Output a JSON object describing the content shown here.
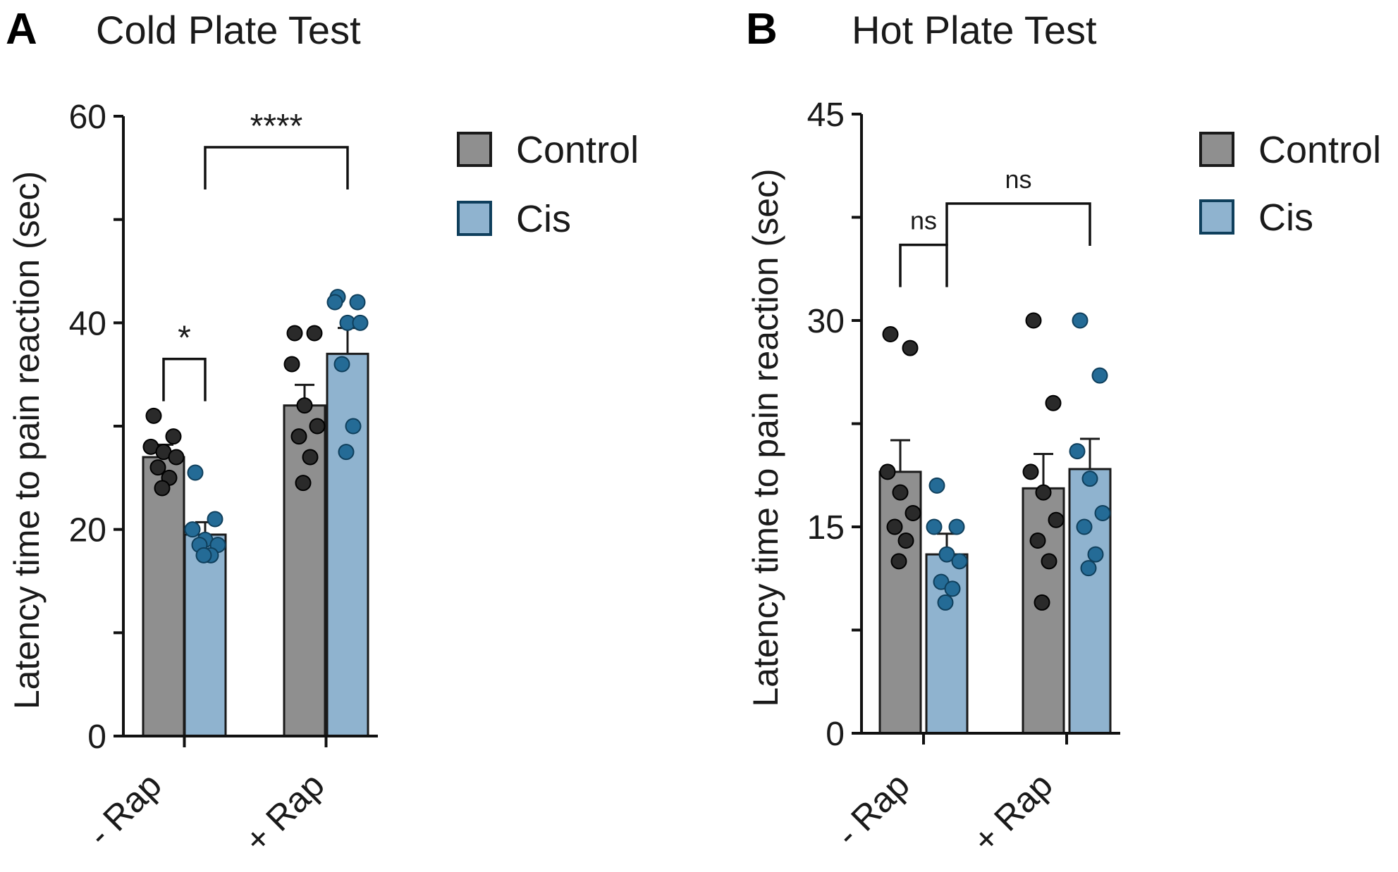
{
  "chart_data": [
    {
      "type": "bar",
      "panel_label": "A",
      "title": "Cold Plate Test",
      "ylabel": "Latency time to pain reaction (sec)",
      "ylim": [
        0,
        60
      ],
      "yticks": [
        "0",
        "20",
        "40",
        "60"
      ],
      "categories": [
        "- Rap",
        "+ Rap"
      ],
      "series": [
        {
          "name": "Control",
          "color": "#8f8f8f",
          "dot_color": "#2a2a2a",
          "values": [
            27,
            32
          ],
          "errors": [
            1.2,
            2
          ],
          "points": [
            [
              31,
              29,
              28,
              27.5,
              27,
              26,
              25,
              24
            ],
            [
              39,
              39,
              36,
              32,
              30,
              29,
              27,
              24.5
            ]
          ]
        },
        {
          "name": "Cis",
          "color": "#8fb3cf",
          "dot_color": "#246b96",
          "values": [
            19.5,
            37
          ],
          "errors": [
            1.2,
            2.5
          ],
          "points": [
            [
              25.5,
              21,
              20,
              19,
              18.5,
              18.5,
              17.5,
              17.5
            ],
            [
              42.5,
              42,
              42,
              40,
              40,
              36,
              30,
              27.5
            ]
          ]
        }
      ],
      "annotations": [
        {
          "label": "*",
          "from": [
            0,
            0
          ],
          "to": [
            0,
            1
          ],
          "level": 36.5
        },
        {
          "label": "****",
          "from": [
            0,
            1
          ],
          "to": [
            1,
            1
          ],
          "level": 57
        }
      ],
      "legend": [
        "Control",
        "Cis"
      ]
    },
    {
      "type": "bar",
      "panel_label": "B",
      "title": "Hot Plate Test",
      "ylabel": "Latency time to pain reaction (sec)",
      "ylim": [
        0,
        45
      ],
      "yticks": [
        "0",
        "15",
        "30",
        "45"
      ],
      "categories": [
        "- Rap",
        "+ Rap"
      ],
      "series": [
        {
          "name": "Control",
          "color": "#8f8f8f",
          "dot_color": "#2a2a2a",
          "values": [
            19,
            17.8
          ],
          "errors": [
            2.3,
            2.5
          ],
          "points": [
            [
              29,
              28,
              19,
              17.5,
              16,
              15,
              14,
              12.5
            ],
            [
              30,
              24,
              19,
              17.5,
              15.5,
              14,
              12.5,
              9.5
            ]
          ]
        },
        {
          "name": "Cis",
          "color": "#8fb3cf",
          "dot_color": "#246b96",
          "values": [
            13,
            19.2
          ],
          "errors": [
            1.5,
            2.2
          ],
          "points": [
            [
              18,
              15,
              15,
              13,
              12.5,
              11,
              10.5,
              9.5
            ],
            [
              30,
              26,
              20.5,
              18.5,
              16,
              15,
              13,
              12
            ]
          ]
        }
      ],
      "annotations": [
        {
          "label": "ns",
          "from": [
            0,
            0
          ],
          "to": [
            0,
            1
          ],
          "level": 35.5
        },
        {
          "label": "ns",
          "from": [
            0,
            1
          ],
          "to": [
            1,
            1
          ],
          "level": 38.5
        }
      ],
      "legend": [
        "Control",
        "Cis"
      ]
    }
  ]
}
